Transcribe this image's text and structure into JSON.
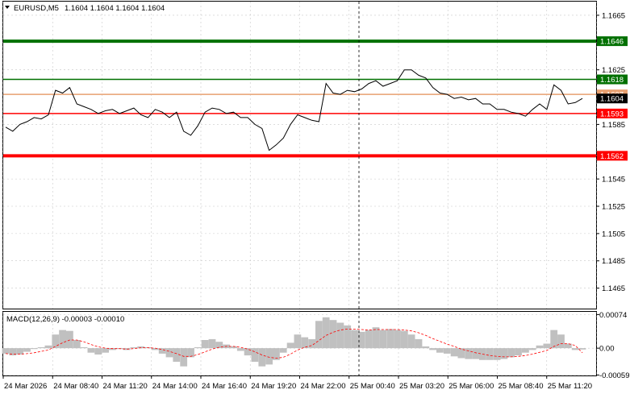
{
  "header": {
    "symbol": "EURUSD,M5",
    "ohlc": "1.1604 1.1604 1.1604 1.1604",
    "arrow_icon": "triangle-down-icon"
  },
  "colors": {
    "price_line": "#000000",
    "green_level": "#007000",
    "red_level": "#ff0000",
    "orange_level": "#e8a070",
    "grid": "#c8c8c8",
    "macd_hist": "#c0c0c0",
    "macd_signal": "#ff0000"
  },
  "chart_data": [
    {
      "type": "line",
      "name": "price",
      "ylim": [
        1.145,
        1.1675
      ],
      "y_ticks": [
        "1.1665",
        "1.1625",
        "1.1585",
        "1.1545",
        "1.1525",
        "1.1505",
        "1.1485",
        "1.1465"
      ],
      "x_tick_labels": [
        "24 Mar 2026",
        "24 Mar 08:40",
        "24 Mar 11:20",
        "24 Mar 14:00",
        "24 Mar 16:40",
        "24 Mar 19:20",
        "24 Mar 22:00",
        "25 Mar 00:40",
        "25 Mar 03:20",
        "25 Mar 06:00",
        "25 Mar 08:40",
        "25 Mar 11:20"
      ],
      "current_price": "1.1604",
      "levels": [
        {
          "value": 1.1646,
          "label": "1.1646",
          "color": "green",
          "style": "thick"
        },
        {
          "value": 1.1618,
          "label": "1.1618",
          "color": "green",
          "style": "thin"
        },
        {
          "value": 1.1607,
          "label": "1.1607",
          "color": "orange",
          "style": "thin"
        },
        {
          "value": 1.1593,
          "label": "1.1593",
          "color": "red",
          "style": "thin"
        },
        {
          "value": 1.1562,
          "label": "1.1562",
          "color": "red",
          "style": "thick"
        }
      ],
      "vline_index": 0.6,
      "values": [
        1.1583,
        1.158,
        1.1585,
        1.1587,
        1.159,
        1.1589,
        1.1592,
        1.161,
        1.1608,
        1.1612,
        1.16,
        1.1598,
        1.1596,
        1.1593,
        1.1595,
        1.1596,
        1.1593,
        1.1595,
        1.1597,
        1.1592,
        1.159,
        1.1596,
        1.1594,
        1.159,
        1.1594,
        1.158,
        1.1577,
        1.1584,
        1.1594,
        1.1597,
        1.1596,
        1.1593,
        1.1594,
        1.159,
        1.159,
        1.1585,
        1.1582,
        1.1566,
        1.157,
        1.1575,
        1.1585,
        1.1592,
        1.159,
        1.1588,
        1.1587,
        1.1615,
        1.1608,
        1.1607,
        1.161,
        1.1609,
        1.1611,
        1.1615,
        1.1617,
        1.1613,
        1.1615,
        1.1617,
        1.1625,
        1.1625,
        1.1621,
        1.1619,
        1.1612,
        1.1608,
        1.1607,
        1.1604,
        1.1605,
        1.1603,
        1.1604,
        1.16,
        1.16,
        1.1596,
        1.1596,
        1.1594,
        1.1593,
        1.1591,
        1.1596,
        1.16,
        1.1596,
        1.1614,
        1.161,
        1.16,
        1.1601,
        1.1604
      ]
    },
    {
      "type": "area",
      "name": "MACD(12,26,9)",
      "title": "MACD(12,26,9) -0.00003 -0.00010",
      "ylim": [
        -0.0006,
        0.0008
      ],
      "y_ticks": [
        "0.00074",
        "0.00",
        "-0.00059"
      ],
      "histogram": [
        -0.00012,
        -0.00016,
        -0.00014,
        -8e-05,
        -2e-05,
        2e-05,
        6e-05,
        0.0003,
        0.0004,
        0.00038,
        0.00018,
        2e-05,
        -0.0001,
        -0.00014,
        -0.0001,
        -4e-05,
        -2e-05,
        -4e-05,
        2e-05,
        4e-05,
        2e-05,
        -4e-05,
        -0.00012,
        -0.0002,
        -0.0003,
        -0.0004,
        -0.0002,
        2e-05,
        0.00018,
        0.0002,
        0.00014,
        8e-05,
        4e-05,
        -6e-05,
        -0.00016,
        -0.0003,
        -0.0004,
        -0.00036,
        -0.00026,
        -0.0001,
        0.00012,
        0.0003,
        0.00024,
        0.0002,
        0.0006,
        0.00068,
        0.00062,
        0.00056,
        0.0005,
        0.0004,
        0.00036,
        0.0004,
        0.00046,
        0.0004,
        0.00042,
        0.0004,
        0.00038,
        0.0003,
        0.0002,
        4e-05,
        -4e-05,
        -0.0001,
        -0.00012,
        -0.00018,
        -0.00022,
        -0.00024,
        -0.00024,
        -0.00026,
        -0.00026,
        -0.00026,
        -0.00024,
        -0.0002,
        -0.00016,
        -0.0001,
        -4e-05,
        6e-05,
        0.0001,
        0.0004,
        0.0003,
        0.0001,
        -4e-05,
        -3e-05
      ],
      "signal": [
        -0.00012,
        -0.00013,
        -0.00013,
        -0.00012,
        -0.0001,
        -7e-05,
        -4e-05,
        4e-05,
        0.00012,
        0.00018,
        0.00018,
        0.00014,
        8e-05,
        3e-05,
        0.0,
        -1e-05,
        -1e-05,
        -2e-05,
        -1e-05,
        1e-05,
        1e-05,
        0.0,
        -3e-05,
        -7e-05,
        -0.00012,
        -0.00018,
        -0.00018,
        -0.00014,
        -8e-05,
        -2e-05,
        2e-05,
        4e-05,
        4e-05,
        2e-05,
        -2e-05,
        -8e-05,
        -0.00015,
        -0.0002,
        -0.00022,
        -0.0002,
        -0.00013,
        -4e-05,
        2e-05,
        6e-05,
        0.00017,
        0.00028,
        0.00035,
        0.0004,
        0.00042,
        0.00042,
        0.00041,
        0.0004,
        0.00041,
        0.00041,
        0.00041,
        0.00041,
        0.0004,
        0.00038,
        0.00034,
        0.00028,
        0.00021,
        0.00015,
        9e-05,
        4e-05,
        -2e-05,
        -6e-05,
        -0.0001,
        -0.00013,
        -0.00016,
        -0.00018,
        -0.00019,
        -0.00019,
        -0.00018,
        -0.00016,
        -0.00013,
        -9e-05,
        -5e-05,
        4e-05,
        0.0001,
        0.0001,
        6e-05,
        -0.0001
      ]
    }
  ]
}
